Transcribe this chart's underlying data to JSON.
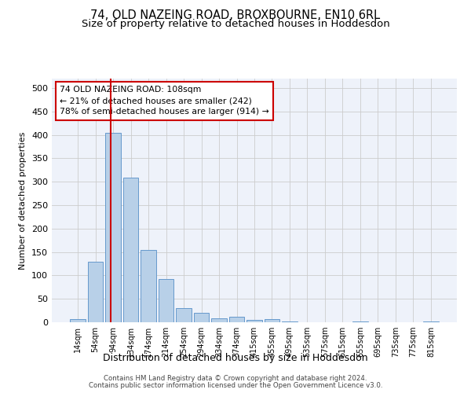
{
  "title": "74, OLD NAZEING ROAD, BROXBOURNE, EN10 6RL",
  "subtitle": "Size of property relative to detached houses in Hoddesdon",
  "xlabel": "Distribution of detached houses by size in Hoddesdon",
  "ylabel": "Number of detached properties",
  "bar_labels": [
    "14sqm",
    "54sqm",
    "94sqm",
    "134sqm",
    "174sqm",
    "214sqm",
    "254sqm",
    "294sqm",
    "334sqm",
    "374sqm",
    "415sqm",
    "455sqm",
    "495sqm",
    "535sqm",
    "575sqm",
    "615sqm",
    "655sqm",
    "695sqm",
    "735sqm",
    "775sqm",
    "815sqm"
  ],
  "bar_values": [
    6,
    130,
    405,
    308,
    155,
    92,
    30,
    20,
    8,
    12,
    5,
    6,
    2,
    0,
    0,
    0,
    2,
    0,
    0,
    0,
    2
  ],
  "bar_color": "#b8d0e8",
  "bar_edge_color": "#6699cc",
  "vline_color": "#cc0000",
  "annotation_text": "74 OLD NAZEING ROAD: 108sqm\n← 21% of detached houses are smaller (242)\n78% of semi-detached houses are larger (914) →",
  "annotation_box_color": "#ffffff",
  "annotation_box_edgecolor": "#cc0000",
  "ylim": [
    0,
    520
  ],
  "yticks": [
    0,
    50,
    100,
    150,
    200,
    250,
    300,
    350,
    400,
    450,
    500
  ],
  "bg_color": "#eef2fa",
  "footer1": "Contains HM Land Registry data © Crown copyright and database right 2024.",
  "footer2": "Contains public sector information licensed under the Open Government Licence v3.0.",
  "title_fontsize": 10.5,
  "subtitle_fontsize": 9.5
}
